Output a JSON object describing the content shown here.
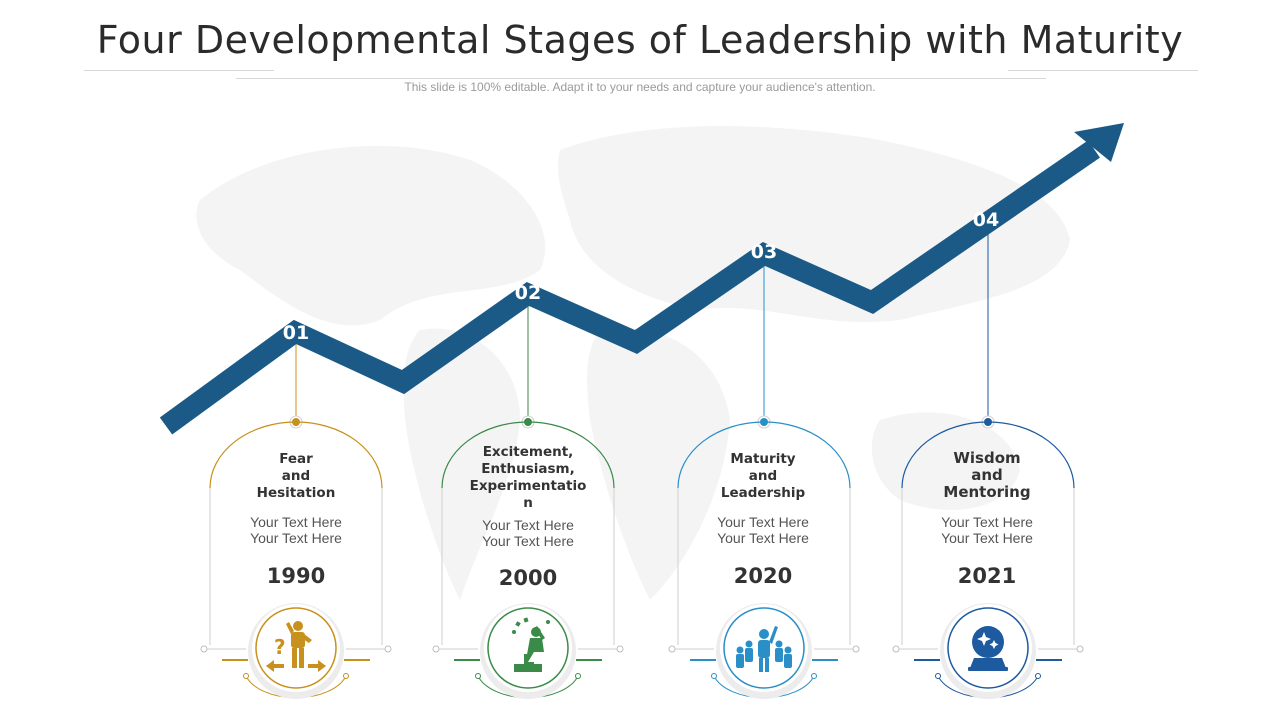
{
  "title": "Four Developmental Stages of Leadership with Maturity",
  "subtitle": "This slide is 100% editable. Adapt it to your needs and capture your audience's attention.",
  "colors": {
    "arrow": "#1b5a87",
    "background_map": "#f6f6f6"
  },
  "stages": [
    {
      "number": "01",
      "heading": "Fear\nand\nHesitation",
      "body": "Your Text Here\nYour Text Here",
      "year": "1990",
      "color": "#c8901c",
      "icon": "confused-person-icon"
    },
    {
      "number": "02",
      "heading": "Excitement,\nEnthusiasm,\nExperimentation",
      "body": "Your Text Here\nYour Text Here",
      "year": "2000",
      "color": "#3a8a48",
      "icon": "enthusiastic-person-icon"
    },
    {
      "number": "03",
      "heading": "Maturity\nand\nLeadership",
      "body": "Your Text Here\nYour Text Here",
      "year": "2020",
      "color": "#2a8fc7",
      "icon": "leader-with-team-icon"
    },
    {
      "number": "04",
      "heading": "Wisdom\nand\nMentoring",
      "body": "Your Text Here\nYour Text Here",
      "year": "2021",
      "color": "#1d5aa0",
      "icon": "crystal-ball-icon"
    }
  ]
}
